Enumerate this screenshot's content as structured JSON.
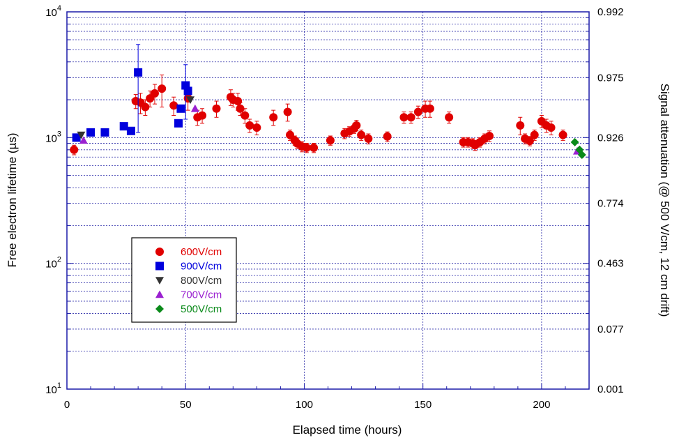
{
  "chart_data": {
    "type": "scatter",
    "xlabel": "Elapsed time (hours)",
    "ylabel": "Free electron lifetime (µs)",
    "y2label": "Signal attenuation (@ 500 V/cm, 12 cm drift)",
    "xlim": [
      0,
      220
    ],
    "ylim": [
      10,
      10000
    ],
    "yscale": "log",
    "grid": true,
    "legend_position": "lower-left",
    "x_ticks": [
      "0",
      "50",
      "100",
      "150",
      "200"
    ],
    "y_ticks": [
      {
        "base": "10",
        "exp": "1"
      },
      {
        "base": "10",
        "exp": "2"
      },
      {
        "base": "10",
        "exp": "3"
      },
      {
        "base": "10",
        "exp": "4"
      }
    ],
    "y2_ticks": [
      {
        "label": "0.992",
        "lifetime": 10000
      },
      {
        "label": "0.975",
        "lifetime": 3000
      },
      {
        "label": "0.926",
        "lifetime": 1000
      },
      {
        "label": "0.774",
        "lifetime": 300
      },
      {
        "label": "0.463",
        "lifetime": 100
      },
      {
        "label": "0.077",
        "lifetime": 30
      },
      {
        "label": "0.001",
        "lifetime": 10
      }
    ],
    "series": [
      {
        "name": "600V/cm",
        "marker": "circle",
        "color": "#e00000",
        "points": [
          [
            3,
            800,
            70
          ],
          [
            29,
            1950,
            250
          ],
          [
            31,
            1900,
            350
          ],
          [
            33,
            1750,
            250
          ],
          [
            35,
            2050,
            300
          ],
          [
            37,
            2250,
            400
          ],
          [
            40,
            2450,
            700
          ],
          [
            45,
            1800,
            300
          ],
          [
            51,
            2050,
            400
          ],
          [
            55,
            1450,
            200
          ],
          [
            57,
            1500,
            200
          ],
          [
            63,
            1700,
            250
          ],
          [
            69,
            2100,
            300
          ],
          [
            70,
            2000,
            250
          ],
          [
            72,
            1950,
            300
          ],
          [
            73,
            1700,
            200
          ],
          [
            75,
            1500,
            200
          ],
          [
            77,
            1250,
            150
          ],
          [
            80,
            1200,
            150
          ],
          [
            87,
            1450,
            200
          ],
          [
            93,
            1600,
            250
          ],
          [
            94,
            1050,
            100
          ],
          [
            96,
            950,
            80
          ],
          [
            97,
            900,
            80
          ],
          [
            99,
            850,
            80
          ],
          [
            101,
            830,
            70
          ],
          [
            104,
            830,
            70
          ],
          [
            111,
            950,
            80
          ],
          [
            117,
            1080,
            100
          ],
          [
            119,
            1120,
            100
          ],
          [
            121,
            1180,
            100
          ],
          [
            122,
            1250,
            120
          ],
          [
            124,
            1050,
            100
          ],
          [
            127,
            980,
            90
          ],
          [
            135,
            1020,
            90
          ],
          [
            142,
            1450,
            150
          ],
          [
            145,
            1450,
            150
          ],
          [
            148,
            1600,
            180
          ],
          [
            151,
            1700,
            250
          ],
          [
            153,
            1700,
            250
          ],
          [
            161,
            1450,
            150
          ],
          [
            167,
            920,
            80
          ],
          [
            169,
            920,
            80
          ],
          [
            171,
            900,
            80
          ],
          [
            172,
            870,
            80
          ],
          [
            174,
            920,
            80
          ],
          [
            176,
            980,
            90
          ],
          [
            178,
            1030,
            100
          ],
          [
            191,
            1250,
            200
          ],
          [
            193,
            980,
            90
          ],
          [
            195,
            940,
            80
          ],
          [
            197,
            1050,
            100
          ],
          [
            200,
            1350,
            150
          ],
          [
            202,
            1250,
            150
          ],
          [
            204,
            1200,
            150
          ],
          [
            209,
            1050,
            100
          ]
        ]
      },
      {
        "name": "900V/cm",
        "marker": "square",
        "color": "#0000dd",
        "points": [
          [
            4,
            1000,
            0
          ],
          [
            10,
            1100,
            0
          ],
          [
            16,
            1100,
            0
          ],
          [
            24,
            1230,
            0
          ],
          [
            27,
            1130,
            0
          ],
          [
            30,
            3300,
            2200
          ],
          [
            47,
            1300,
            0
          ],
          [
            48,
            1700,
            0
          ],
          [
            50,
            2600,
            1200
          ],
          [
            51,
            2350,
            0
          ]
        ]
      },
      {
        "name": "800V/cm",
        "marker": "triangle-down",
        "color": "#333333",
        "points": [
          [
            6,
            1050,
            0
          ],
          [
            52,
            2000,
            0
          ]
        ]
      },
      {
        "name": "700V/cm",
        "marker": "triangle-up",
        "color": "#9a20d0",
        "points": [
          [
            7,
            950,
            0
          ],
          [
            54,
            1700,
            0
          ],
          [
            215,
            780,
            0
          ]
        ]
      },
      {
        "name": "500V/cm",
        "marker": "diamond",
        "color": "#0a8a1a",
        "points": [
          [
            214,
            920,
            0
          ],
          [
            216,
            800,
            0
          ],
          [
            217,
            730,
            0
          ]
        ]
      }
    ]
  }
}
